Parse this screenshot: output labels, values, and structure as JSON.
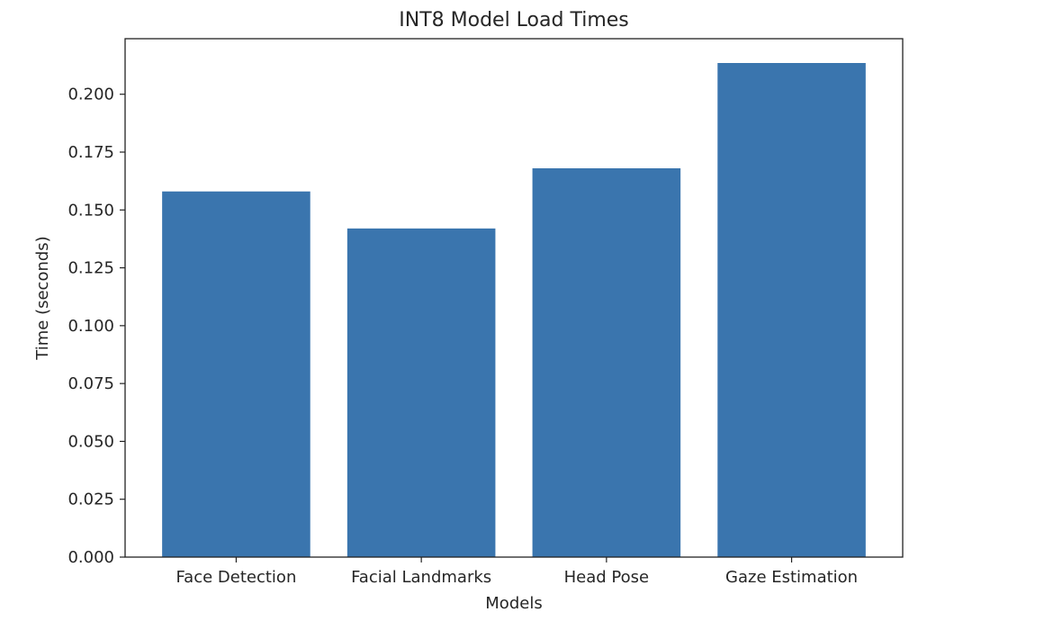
{
  "chart_data": {
    "type": "bar",
    "title": "INT8 Model Load Times",
    "xlabel": "Models",
    "ylabel": "Time (seconds)",
    "categories": [
      "Face Detection",
      "Facial Landmarks",
      "Head Pose",
      "Gaze Estimation"
    ],
    "values": [
      0.158,
      0.142,
      0.168,
      0.2135
    ],
    "ylim": [
      0,
      0.224
    ],
    "yticks": [
      0.0,
      0.025,
      0.05,
      0.075,
      0.1,
      0.125,
      0.15,
      0.175,
      0.2
    ],
    "ytick_labels": [
      "0.000",
      "0.025",
      "0.050",
      "0.075",
      "0.100",
      "0.125",
      "0.150",
      "0.175",
      "0.200"
    ],
    "bar_color": "#3a75ae",
    "grid": false,
    "legend": false
  }
}
